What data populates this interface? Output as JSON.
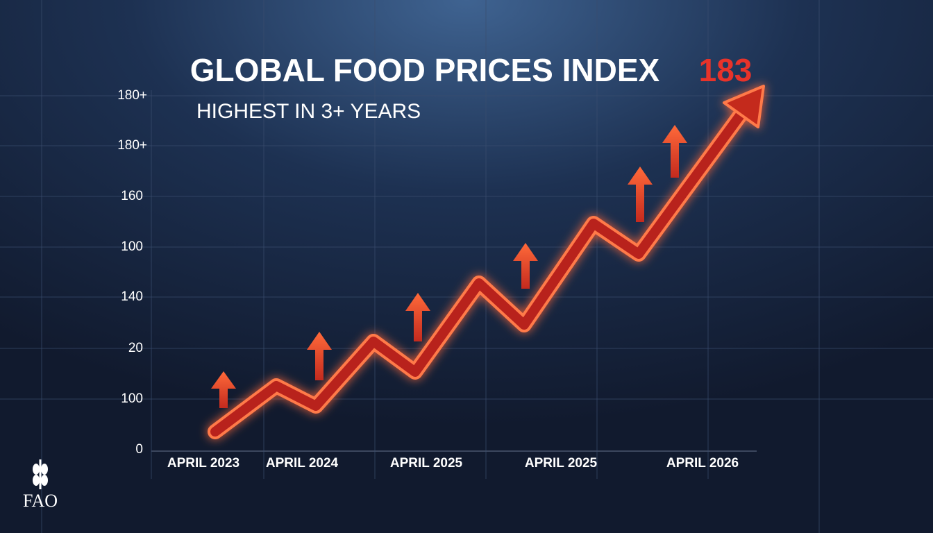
{
  "header": {
    "title": "GLOBAL FOOD PRICES INDEX",
    "highlight": "183",
    "subtitle": "HIGHEST IN 3+ YEARS"
  },
  "y_axis_labels": [
    "180+",
    "180+",
    "160",
    "100",
    "140",
    "20",
    "100",
    "0"
  ],
  "x_axis_labels": [
    "APRIL 2023",
    "APRIL 2024",
    "APRIL 2025",
    "APRIL 2025",
    "APRIL 2026"
  ],
  "logo": {
    "text": "FAO"
  }
}
